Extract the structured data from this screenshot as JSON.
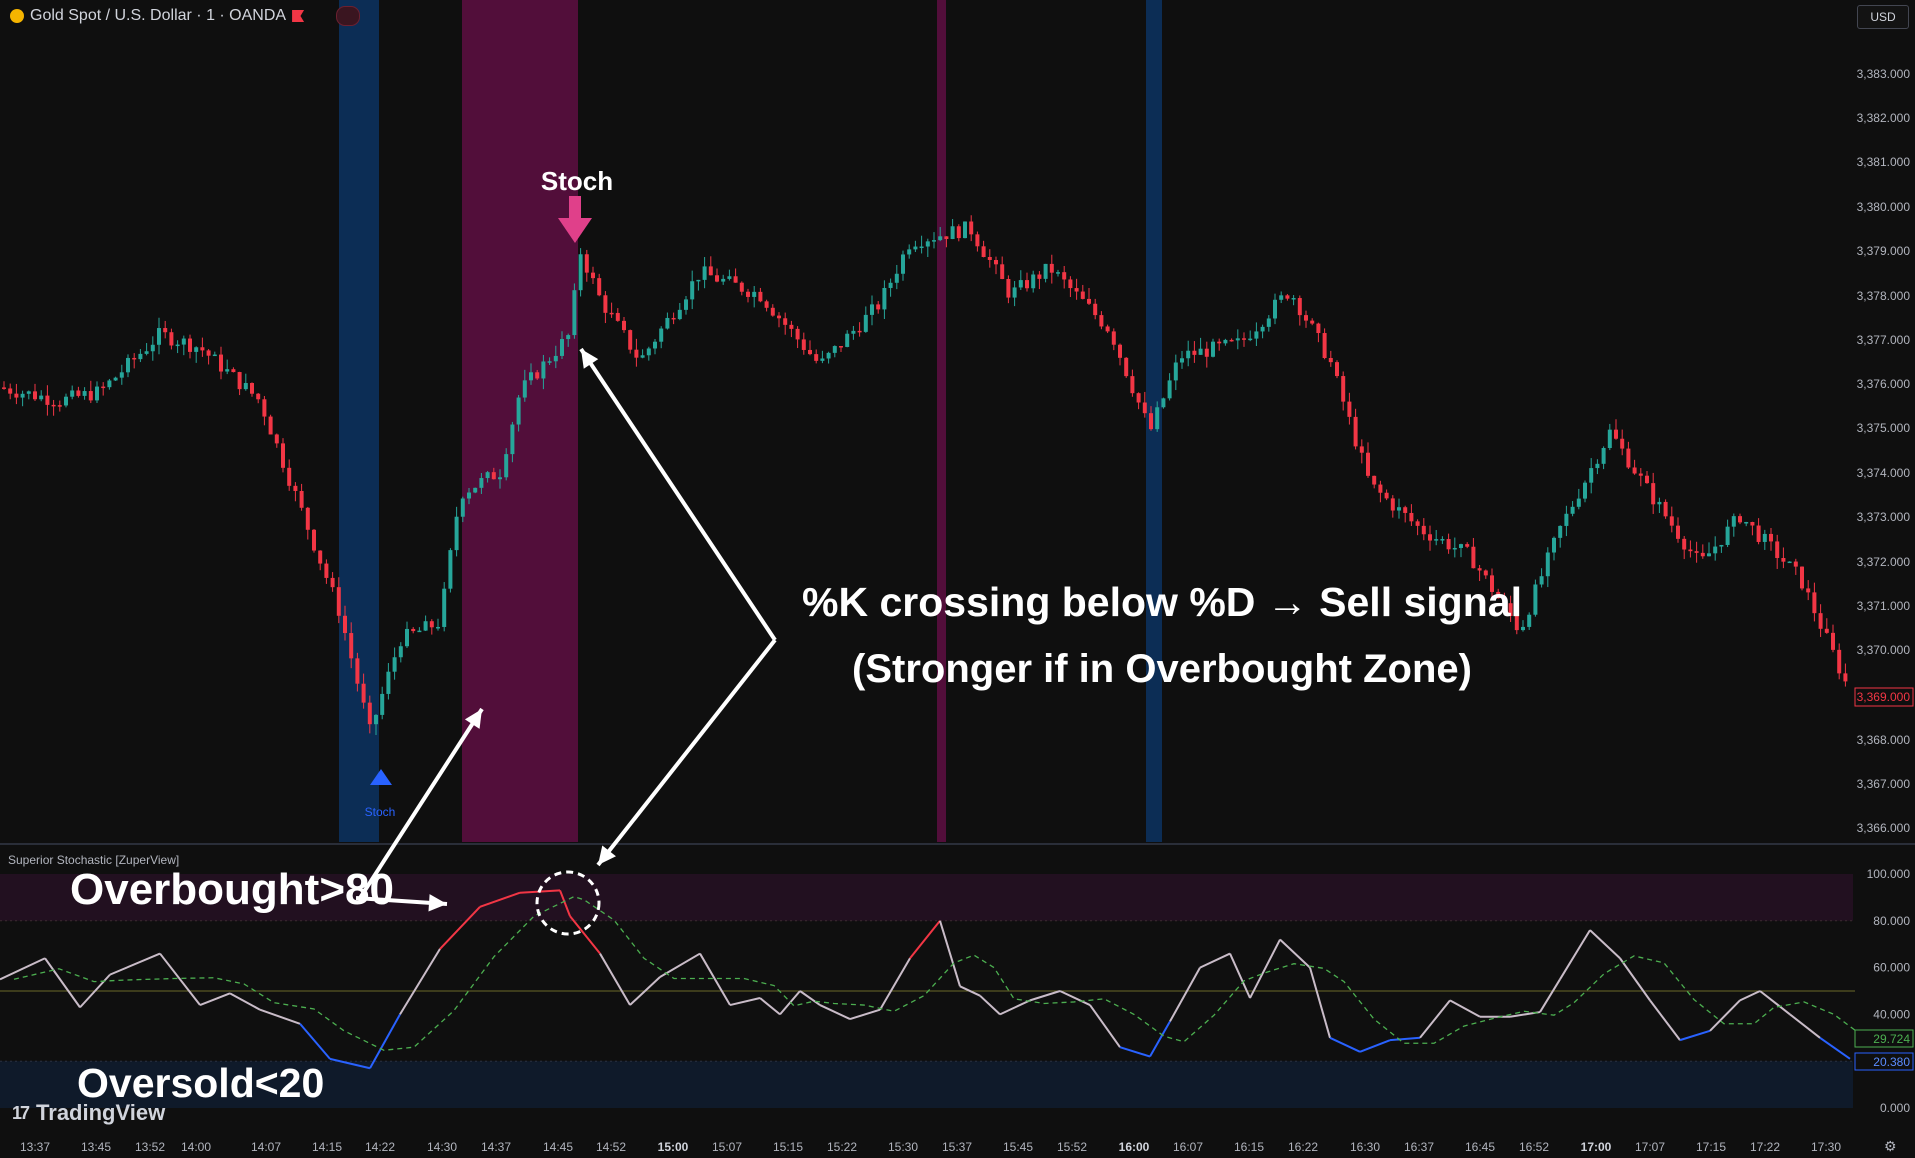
{
  "header": {
    "symbol": "Gold Spot / U.S. Dollar · 1 · OANDA",
    "currency": "USD"
  },
  "indicator": {
    "name": "Superior Stochastic [ZuperView]"
  },
  "price_axis": [
    "3,383.000",
    "3,382.000",
    "3,381.000",
    "3,380.000",
    "3,379.000",
    "3,378.000",
    "3,377.000",
    "3,376.000",
    "3,375.000",
    "3,374.000",
    "3,373.000",
    "3,372.000",
    "3,371.000",
    "3,370.000",
    "3,368.000",
    "3,367.000",
    "3,366.000"
  ],
  "price_label": "3,369.000",
  "osc_axis": [
    "100.000",
    "80.000",
    "60.000",
    "40.000",
    "0.000"
  ],
  "osc_labels": {
    "d_value": "29.724",
    "k_value": "20.380"
  },
  "time_axis": [
    "13:37",
    "13:45",
    "13:52",
    "14:00",
    "14:07",
    "14:15",
    "14:22",
    "14:30",
    "14:37",
    "14:45",
    "14:52",
    "15:00",
    "15:07",
    "15:15",
    "15:22",
    "15:30",
    "15:37",
    "15:45",
    "15:52",
    "16:00",
    "16:07",
    "16:15",
    "16:22",
    "16:30",
    "16:37",
    "16:45",
    "16:52",
    "17:00",
    "17:07",
    "17:15",
    "17:22",
    "17:30"
  ],
  "annotations": {
    "stoch_top": "Stoch",
    "stoch_bottom": "Stoch",
    "main_line1": "%K crossing below %D → Sell signal",
    "main_line2": "(Stronger if in Overbought Zone)",
    "overbought": "Overbought>80",
    "oversold": "Oversold<20"
  },
  "branding": "TradingView",
  "colors": {
    "bull": "#26a69a",
    "bear": "#f23645",
    "buy_band": "#0c2d55",
    "sell_band": "#520e3a",
    "k_high": "#f23645",
    "k_low": "#2962ff",
    "d_line": "#4caf50"
  }
}
